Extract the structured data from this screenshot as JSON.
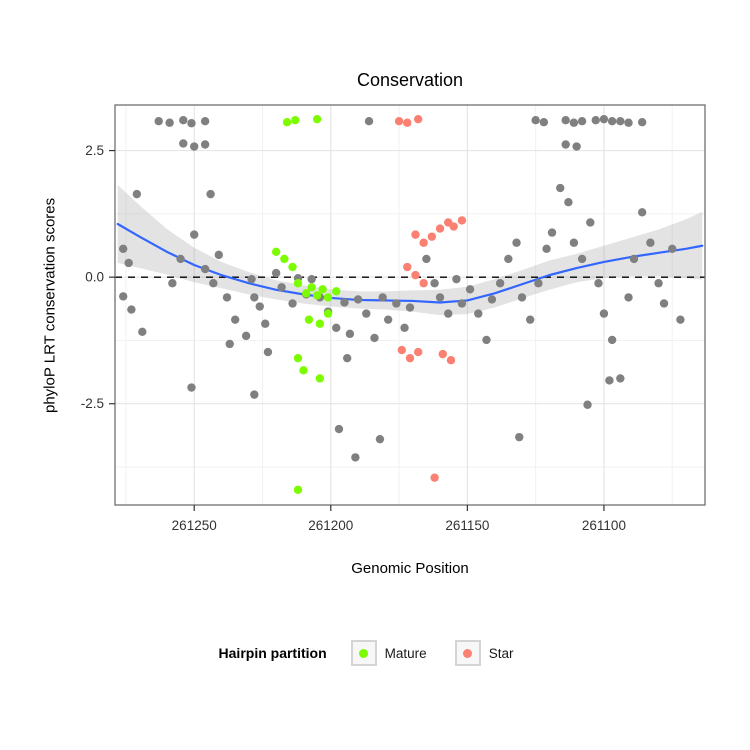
{
  "chart_data": {
    "type": "scatter",
    "title": "Conservation",
    "xlabel": "Genomic Position",
    "ylabel": "phyloP LRT conservation scores",
    "x_axis": {
      "reversed": true,
      "domain": [
        261279,
        261063
      ],
      "ticks": [
        {
          "label": "261250",
          "value": 261250
        },
        {
          "label": "261200",
          "value": 261200
        },
        {
          "label": "261150",
          "value": 261150
        },
        {
          "label": "261100",
          "value": 261100
        }
      ],
      "minor": [
        261275,
        261225,
        261175,
        261125,
        261075
      ]
    },
    "y_axis": {
      "domain": [
        -4.5,
        3.4
      ],
      "ticks": [
        {
          "label": "2.5",
          "value": 2.5
        },
        {
          "label": "0.0",
          "value": 0
        },
        {
          "label": "-2.5",
          "value": -2.5
        }
      ],
      "minor": [
        1.25,
        -1.25,
        -3.75
      ]
    },
    "reference_line": {
      "y": 0,
      "style": "dashed",
      "color": "#000000"
    },
    "colors": {
      "Mature": "#7CFC00",
      "Star": "#FA8072",
      "Other": "#808080",
      "smooth_line": "#3366FF",
      "smooth_band": "#999999",
      "grid_major": "#e2e2e2",
      "grid_minor": "#f1f1f1",
      "panel_border": "#6f6f6f"
    },
    "series": [
      {
        "name": "Other",
        "color_key": "Other",
        "points": [
          [
            261263,
            3.08
          ],
          [
            261259,
            3.05
          ],
          [
            261254,
            3.1
          ],
          [
            261251,
            3.04
          ],
          [
            261246,
            3.08
          ],
          [
            261186,
            3.08
          ],
          [
            261125,
            3.1
          ],
          [
            261122,
            3.06
          ],
          [
            261114,
            3.1
          ],
          [
            261111,
            3.05
          ],
          [
            261108,
            3.08
          ],
          [
            261103,
            3.1
          ],
          [
            261100,
            3.12
          ],
          [
            261097,
            3.08
          ],
          [
            261094,
            3.08
          ],
          [
            261091,
            3.05
          ],
          [
            261086,
            3.06
          ],
          [
            261254,
            2.64
          ],
          [
            261250,
            2.58
          ],
          [
            261246,
            2.62
          ],
          [
            261114,
            2.62
          ],
          [
            261110,
            2.58
          ],
          [
            261271,
            1.64
          ],
          [
            261276,
            0.56
          ],
          [
            261274,
            0.28
          ],
          [
            261276,
            -0.38
          ],
          [
            261273,
            -0.64
          ],
          [
            261269,
            -1.08
          ],
          [
            261258,
            -0.12
          ],
          [
            261255,
            0.36
          ],
          [
            261250,
            0.84
          ],
          [
            261244,
            1.64
          ],
          [
            261246,
            0.16
          ],
          [
            261241,
            0.44
          ],
          [
            261243,
            -0.12
          ],
          [
            261238,
            -0.4
          ],
          [
            261235,
            -0.84
          ],
          [
            261237,
            -1.32
          ],
          [
            261231,
            -1.16
          ],
          [
            261228,
            -0.4
          ],
          [
            261229,
            -0.04
          ],
          [
            261226,
            -0.58
          ],
          [
            261224,
            -0.92
          ],
          [
            261228,
            -2.32
          ],
          [
            261251,
            -2.18
          ],
          [
            261223,
            -1.48
          ],
          [
            261220,
            0.08
          ],
          [
            261218,
            -0.2
          ],
          [
            261214,
            -0.52
          ],
          [
            261212,
            -0.02
          ],
          [
            261209,
            -0.34
          ],
          [
            261207,
            -0.04
          ],
          [
            261204,
            -0.4
          ],
          [
            261201,
            -0.68
          ],
          [
            261198,
            -1.0
          ],
          [
            261195,
            -0.5
          ],
          [
            261193,
            -1.12
          ],
          [
            261194,
            -1.6
          ],
          [
            261190,
            -0.44
          ],
          [
            261187,
            -0.72
          ],
          [
            261184,
            -1.2
          ],
          [
            261181,
            -0.4
          ],
          [
            261179,
            -0.84
          ],
          [
            261176,
            -0.52
          ],
          [
            261173,
            -1.0
          ],
          [
            261171,
            -0.6
          ],
          [
            261191,
            -3.56
          ],
          [
            261197,
            -3.0
          ],
          [
            261182,
            -3.2
          ],
          [
            261165,
            0.36
          ],
          [
            261162,
            -0.12
          ],
          [
            261160,
            -0.4
          ],
          [
            261157,
            -0.72
          ],
          [
            261154,
            -0.04
          ],
          [
            261152,
            -0.52
          ],
          [
            261149,
            -0.24
          ],
          [
            261146,
            -0.72
          ],
          [
            261143,
            -1.24
          ],
          [
            261141,
            -0.44
          ],
          [
            261138,
            -0.12
          ],
          [
            261135,
            0.36
          ],
          [
            261132,
            0.68
          ],
          [
            261130,
            -0.4
          ],
          [
            261127,
            -0.84
          ],
          [
            261124,
            -0.12
          ],
          [
            261121,
            0.56
          ],
          [
            261119,
            0.88
          ],
          [
            261116,
            1.76
          ],
          [
            261113,
            1.48
          ],
          [
            261111,
            0.68
          ],
          [
            261108,
            0.36
          ],
          [
            261105,
            1.08
          ],
          [
            261102,
            -0.12
          ],
          [
            261100,
            -0.72
          ],
          [
            261097,
            -1.24
          ],
          [
            261094,
            -2.0
          ],
          [
            261091,
            -0.4
          ],
          [
            261089,
            0.36
          ],
          [
            261086,
            1.28
          ],
          [
            261083,
            0.68
          ],
          [
            261080,
            -0.12
          ],
          [
            261078,
            -0.52
          ],
          [
            261075,
            0.56
          ],
          [
            261072,
            -0.84
          ],
          [
            261131,
            -3.16
          ],
          [
            261106,
            -2.52
          ],
          [
            261098,
            -2.04
          ]
        ]
      },
      {
        "name": "Mature",
        "color_key": "Mature",
        "points": [
          [
            261216,
            3.06
          ],
          [
            261213,
            3.1
          ],
          [
            261205,
            3.12
          ],
          [
            261220,
            0.5
          ],
          [
            261217,
            0.36
          ],
          [
            261214,
            0.2
          ],
          [
            261212,
            -0.12
          ],
          [
            261209,
            -0.32
          ],
          [
            261207,
            -0.2
          ],
          [
            261205,
            -0.36
          ],
          [
            261203,
            -0.24
          ],
          [
            261201,
            -0.4
          ],
          [
            261198,
            -0.28
          ],
          [
            261201,
            -0.72
          ],
          [
            261204,
            -0.92
          ],
          [
            261208,
            -0.84
          ],
          [
            261212,
            -1.6
          ],
          [
            261210,
            -1.84
          ],
          [
            261204,
            -2.0
          ],
          [
            261212,
            -4.2
          ]
        ]
      },
      {
        "name": "Star",
        "color_key": "Star",
        "points": [
          [
            261175,
            3.08
          ],
          [
            261172,
            3.05
          ],
          [
            261168,
            3.12
          ],
          [
            261169,
            0.84
          ],
          [
            261166,
            0.68
          ],
          [
            261163,
            0.8
          ],
          [
            261160,
            0.96
          ],
          [
            261157,
            1.08
          ],
          [
            261155,
            1.0
          ],
          [
            261152,
            1.12
          ],
          [
            261172,
            0.2
          ],
          [
            261169,
            0.04
          ],
          [
            261166,
            -0.12
          ],
          [
            261174,
            -1.44
          ],
          [
            261171,
            -1.6
          ],
          [
            261168,
            -1.48
          ],
          [
            261159,
            -1.52
          ],
          [
            261156,
            -1.64
          ],
          [
            261162,
            -3.96
          ]
        ]
      }
    ],
    "smooth": {
      "x": [
        261278,
        261270,
        261260,
        261250,
        261240,
        261230,
        261220,
        261210,
        261200,
        261190,
        261180,
        261170,
        261160,
        261150,
        261140,
        261130,
        261120,
        261110,
        261100,
        261090,
        261080,
        261070,
        261064
      ],
      "y": [
        1.05,
        0.8,
        0.5,
        0.24,
        0.04,
        -0.12,
        -0.25,
        -0.34,
        -0.41,
        -0.45,
        -0.46,
        -0.47,
        -0.5,
        -0.46,
        -0.32,
        -0.14,
        0.04,
        0.18,
        0.3,
        0.4,
        0.48,
        0.56,
        0.62
      ],
      "lo": [
        0.28,
        0.18,
        0.05,
        -0.1,
        -0.22,
        -0.34,
        -0.44,
        -0.52,
        -0.58,
        -0.62,
        -0.64,
        -0.68,
        -0.75,
        -0.73,
        -0.6,
        -0.42,
        -0.25,
        -0.1,
        -0.02,
        0.02,
        0.02,
        -0.02,
        -0.05
      ],
      "hi": [
        1.82,
        1.42,
        0.95,
        0.58,
        0.3,
        0.1,
        -0.06,
        -0.16,
        -0.24,
        -0.28,
        -0.28,
        -0.26,
        -0.25,
        -0.19,
        -0.04,
        0.14,
        0.33,
        0.46,
        0.62,
        0.78,
        0.94,
        1.14,
        1.29
      ]
    },
    "legend_position": "bottom"
  },
  "legend": {
    "title": "Hairpin partition",
    "items": [
      {
        "label": "Mature"
      },
      {
        "label": "Star"
      }
    ]
  }
}
